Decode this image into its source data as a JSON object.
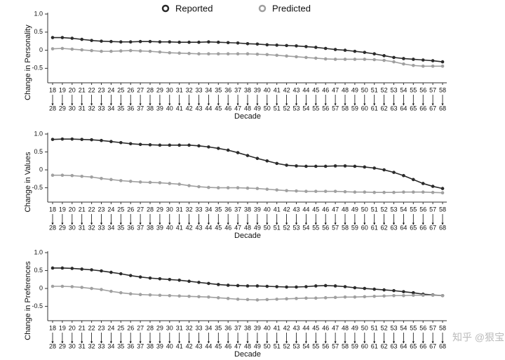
{
  "chart_data": [
    {
      "type": "line",
      "ylabel": "Change in Personality",
      "xlabel": "Decade",
      "x_start": [
        18,
        19,
        20,
        21,
        22,
        23,
        24,
        25,
        26,
        27,
        28,
        29,
        30,
        31,
        32,
        33,
        34,
        35,
        36,
        37,
        38,
        39,
        40,
        41,
        42,
        43,
        44,
        45,
        46,
        47,
        48,
        49,
        50,
        51,
        52,
        53,
        54,
        55,
        56,
        57,
        58
      ],
      "x_end": [
        28,
        29,
        30,
        31,
        32,
        33,
        34,
        35,
        36,
        37,
        38,
        39,
        40,
        41,
        42,
        43,
        44,
        45,
        46,
        47,
        48,
        49,
        50,
        51,
        52,
        53,
        54,
        55,
        56,
        57,
        58,
        59,
        60,
        61,
        62,
        63,
        64,
        65,
        66,
        67,
        68
      ],
      "ylim": [
        -0.9,
        1.0
      ],
      "yticks": [
        {
          "value": 1.0,
          "label": "1.0"
        },
        0.5,
        0,
        -0.5
      ],
      "series": [
        {
          "name": "Reported",
          "color": "#2b2b2b",
          "values": [
            0.35,
            0.35,
            0.33,
            0.3,
            0.27,
            0.25,
            0.24,
            0.23,
            0.23,
            0.24,
            0.24,
            0.23,
            0.23,
            0.22,
            0.22,
            0.22,
            0.23,
            0.22,
            0.21,
            0.2,
            0.18,
            0.17,
            0.15,
            0.14,
            0.13,
            0.12,
            0.1,
            0.08,
            0.05,
            0.02,
            0.0,
            -0.03,
            -0.06,
            -0.1,
            -0.15,
            -0.2,
            -0.23,
            -0.25,
            -0.27,
            -0.29,
            -0.32
          ]
        },
        {
          "name": "Predicted",
          "color": "#a0a0a0",
          "values": [
            0.04,
            0.05,
            0.03,
            0.01,
            -0.01,
            -0.03,
            -0.03,
            -0.02,
            -0.01,
            -0.02,
            -0.03,
            -0.05,
            -0.07,
            -0.08,
            -0.09,
            -0.1,
            -0.1,
            -0.1,
            -0.1,
            -0.1,
            -0.1,
            -0.11,
            -0.12,
            -0.14,
            -0.16,
            -0.18,
            -0.2,
            -0.22,
            -0.24,
            -0.25,
            -0.25,
            -0.25,
            -0.25,
            -0.26,
            -0.28,
            -0.32,
            -0.38,
            -0.42,
            -0.44,
            -0.44,
            -0.44
          ]
        }
      ]
    },
    {
      "type": "line",
      "ylabel": "Change in Values",
      "xlabel": "Decade",
      "x_start": [
        18,
        19,
        20,
        21,
        22,
        23,
        24,
        25,
        26,
        27,
        28,
        29,
        30,
        31,
        32,
        33,
        34,
        35,
        36,
        37,
        38,
        39,
        40,
        41,
        42,
        43,
        44,
        45,
        46,
        47,
        48,
        49,
        50,
        51,
        52,
        53,
        54,
        55,
        56,
        57,
        58
      ],
      "x_end": [
        28,
        29,
        30,
        31,
        32,
        33,
        34,
        35,
        36,
        37,
        38,
        39,
        40,
        41,
        42,
        43,
        44,
        45,
        46,
        47,
        48,
        49,
        50,
        51,
        52,
        53,
        54,
        55,
        56,
        57,
        58,
        59,
        60,
        61,
        62,
        63,
        64,
        65,
        66,
        67,
        68
      ],
      "ylim": [
        -0.9,
        1.0
      ],
      "yticks": [
        {
          "value": 1.0,
          "label": "1.0"
        },
        0.5,
        0,
        -0.5
      ],
      "series": [
        {
          "name": "Reported",
          "color": "#2b2b2b",
          "values": [
            0.85,
            0.86,
            0.86,
            0.85,
            0.84,
            0.82,
            0.79,
            0.76,
            0.73,
            0.71,
            0.7,
            0.69,
            0.69,
            0.69,
            0.69,
            0.67,
            0.64,
            0.6,
            0.55,
            0.48,
            0.4,
            0.32,
            0.25,
            0.18,
            0.13,
            0.11,
            0.1,
            0.1,
            0.1,
            0.11,
            0.11,
            0.1,
            0.08,
            0.05,
            0.0,
            -0.07,
            -0.16,
            -0.27,
            -0.38,
            -0.46,
            -0.52
          ]
        },
        {
          "name": "Predicted",
          "color": "#a0a0a0",
          "values": [
            -0.15,
            -0.15,
            -0.16,
            -0.18,
            -0.2,
            -0.24,
            -0.27,
            -0.3,
            -0.32,
            -0.34,
            -0.35,
            -0.36,
            -0.38,
            -0.4,
            -0.44,
            -0.47,
            -0.49,
            -0.5,
            -0.5,
            -0.5,
            -0.51,
            -0.52,
            -0.54,
            -0.56,
            -0.58,
            -0.59,
            -0.6,
            -0.6,
            -0.6,
            -0.6,
            -0.61,
            -0.62,
            -0.62,
            -0.63,
            -0.63,
            -0.63,
            -0.62,
            -0.62,
            -0.62,
            -0.63,
            -0.64
          ]
        }
      ]
    },
    {
      "type": "line",
      "ylabel": "Change in Preferences",
      "xlabel": "Decade",
      "x_start": [
        18,
        19,
        20,
        21,
        22,
        23,
        24,
        25,
        26,
        27,
        28,
        29,
        30,
        31,
        32,
        33,
        34,
        35,
        36,
        37,
        38,
        39,
        40,
        41,
        42,
        43,
        44,
        45,
        46,
        47,
        48,
        49,
        50,
        51,
        52,
        53,
        54,
        55,
        56,
        57,
        58
      ],
      "x_end": [
        28,
        29,
        30,
        31,
        32,
        33,
        34,
        35,
        36,
        37,
        38,
        39,
        40,
        41,
        42,
        43,
        44,
        45,
        46,
        47,
        48,
        49,
        50,
        51,
        52,
        53,
        54,
        55,
        56,
        57,
        58,
        59,
        60,
        61,
        62,
        63,
        64,
        65,
        66,
        67,
        68
      ],
      "ylim": [
        -0.9,
        1.0
      ],
      "yticks": [
        {
          "value": 1.0,
          "label": "1.0"
        },
        0.5,
        0,
        -0.5
      ],
      "series": [
        {
          "name": "Reported",
          "color": "#2b2b2b",
          "values": [
            0.57,
            0.57,
            0.56,
            0.54,
            0.52,
            0.49,
            0.45,
            0.41,
            0.36,
            0.32,
            0.29,
            0.27,
            0.25,
            0.23,
            0.2,
            0.17,
            0.14,
            0.11,
            0.09,
            0.08,
            0.07,
            0.07,
            0.06,
            0.05,
            0.04,
            0.04,
            0.05,
            0.07,
            0.08,
            0.07,
            0.05,
            0.02,
            0.0,
            -0.02,
            -0.04,
            -0.06,
            -0.09,
            -0.12,
            -0.16,
            -0.18,
            -0.2
          ]
        },
        {
          "name": "Predicted",
          "color": "#a0a0a0",
          "values": [
            0.06,
            0.06,
            0.05,
            0.03,
            0.0,
            -0.03,
            -0.08,
            -0.12,
            -0.15,
            -0.17,
            -0.18,
            -0.19,
            -0.2,
            -0.21,
            -0.22,
            -0.23,
            -0.24,
            -0.26,
            -0.28,
            -0.3,
            -0.31,
            -0.32,
            -0.31,
            -0.3,
            -0.29,
            -0.28,
            -0.27,
            -0.27,
            -0.26,
            -0.25,
            -0.24,
            -0.24,
            -0.23,
            -0.22,
            -0.21,
            -0.2,
            -0.2,
            -0.19,
            -0.19,
            -0.19,
            -0.2
          ]
        }
      ]
    }
  ],
  "watermark": "知乎 @狠宝"
}
